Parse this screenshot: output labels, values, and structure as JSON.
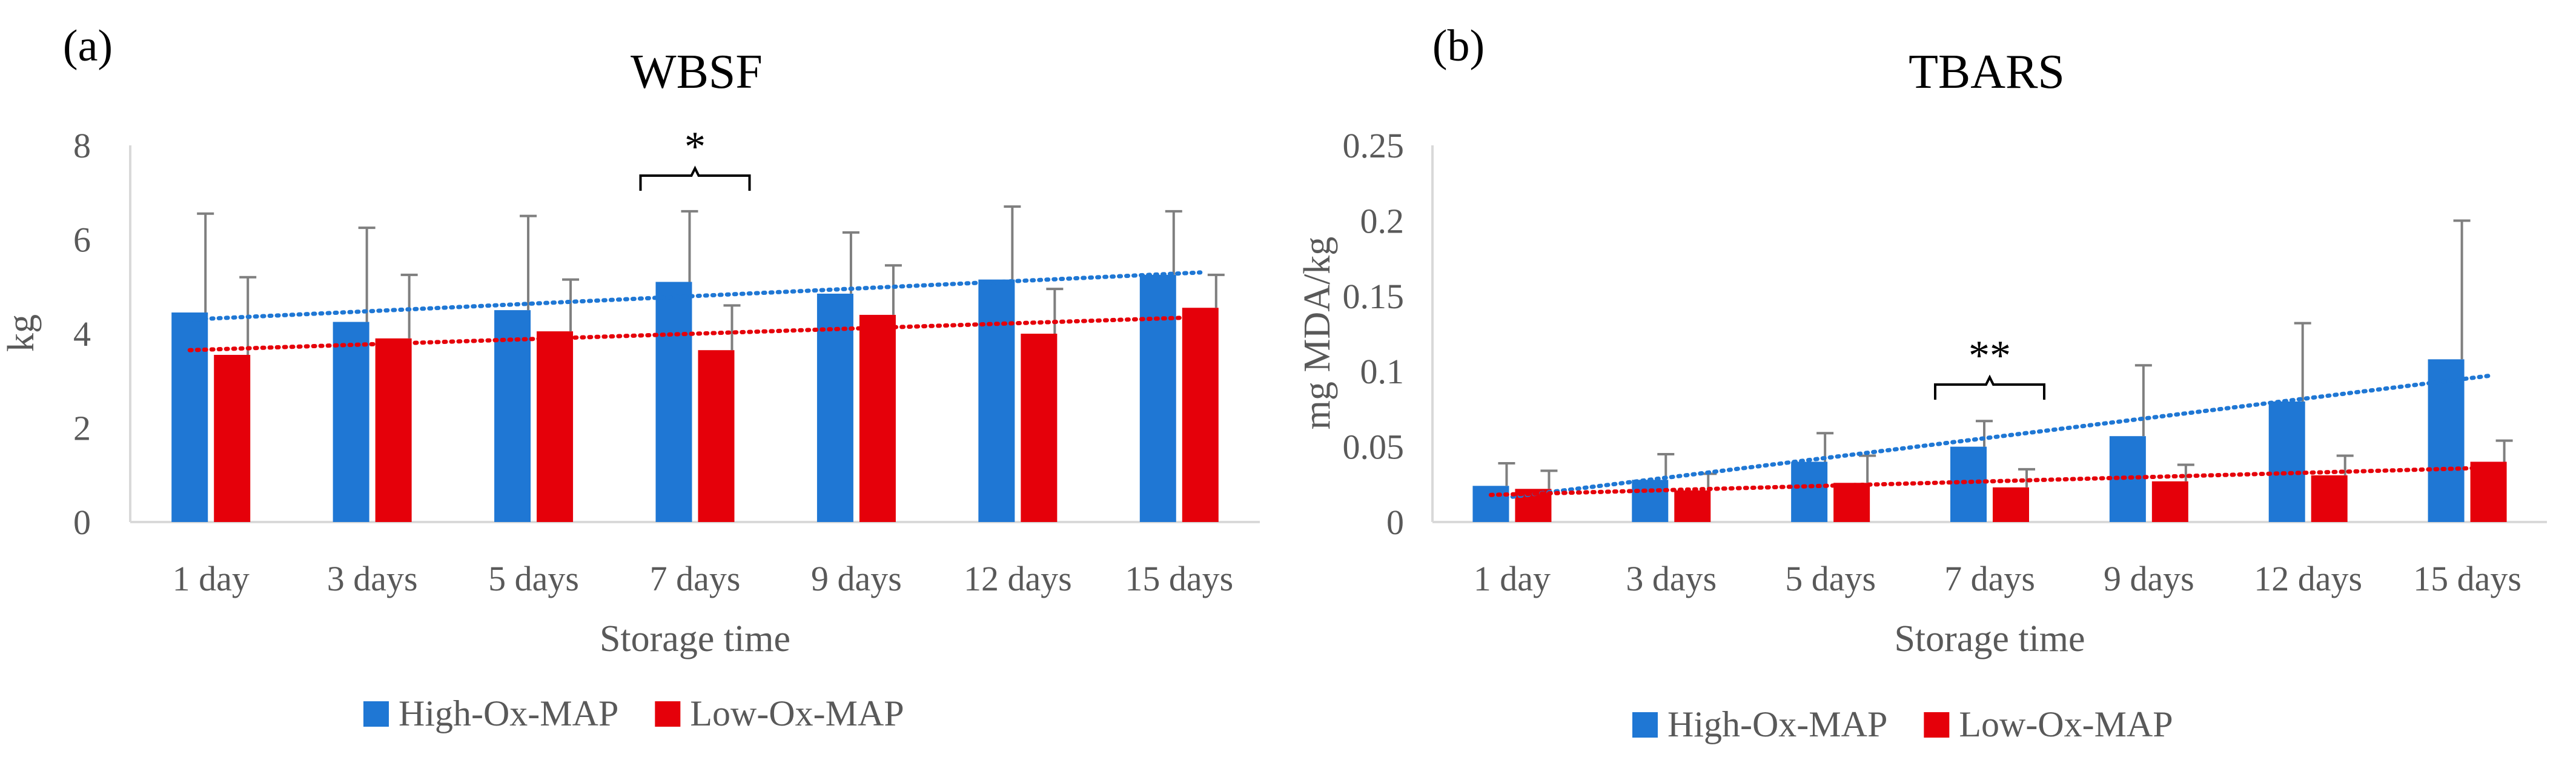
{
  "legend": {
    "series": [
      {
        "name": "High-Ox-MAP",
        "color": "#1f77d4"
      },
      {
        "name": "Low-Ox-MAP",
        "color": "#e5000a"
      }
    ]
  },
  "chart_data": [
    {
      "type": "bar",
      "panel_label": "(a)",
      "title": "WBSF",
      "xlabel": "Storage time",
      "ylabel": "kg",
      "ylim": [
        0,
        8
      ],
      "yticks": [
        "0",
        "2",
        "4",
        "6",
        "8"
      ],
      "ytick_values": [
        0,
        2,
        4,
        6,
        8
      ],
      "grid": false,
      "categories": [
        "1 day",
        "3 days",
        "5 days",
        "7 days",
        "9 days",
        "12 days",
        "15 days"
      ],
      "series": [
        {
          "name": "High-Ox-MAP",
          "values": [
            4.45,
            4.25,
            4.5,
            5.1,
            4.85,
            5.15,
            5.25
          ],
          "errors": [
            2.1,
            2.0,
            2.0,
            1.5,
            1.3,
            1.55,
            1.35
          ],
          "trend": [
            4.3,
            5.3
          ]
        },
        {
          "name": "Low-Ox-MAP",
          "values": [
            3.55,
            3.9,
            4.05,
            3.65,
            4.4,
            4.0,
            4.55
          ],
          "errors": [
            1.65,
            1.35,
            1.1,
            0.95,
            1.05,
            0.95,
            0.7
          ],
          "trend": [
            3.65,
            4.35
          ]
        }
      ],
      "annotations": [
        {
          "text": "*",
          "category_index": 3,
          "y": 7.5
        }
      ]
    },
    {
      "type": "bar",
      "panel_label": "(b)",
      "title": "TBARS",
      "xlabel": "Storage time",
      "ylabel": "mg MDA/kg",
      "ylim": [
        0,
        0.25
      ],
      "yticks": [
        "0",
        "0.05",
        "0.1",
        "0.15",
        "0.2",
        "0.25"
      ],
      "ytick_values": [
        0,
        0.05,
        0.1,
        0.15,
        0.2,
        0.25
      ],
      "grid": false,
      "categories": [
        "1 day",
        "3 days",
        "5 days",
        "7 days",
        "9 days",
        "12 days",
        "15 days"
      ],
      "series": [
        {
          "name": "High-Ox-MAP",
          "values": [
            0.024,
            0.028,
            0.04,
            0.05,
            0.057,
            0.08,
            0.108
          ],
          "errors": [
            0.015,
            0.017,
            0.019,
            0.017,
            0.047,
            0.052,
            0.092
          ],
          "trend": [
            0.015,
            0.097
          ]
        },
        {
          "name": "Low-Ox-MAP",
          "values": [
            0.022,
            0.021,
            0.026,
            0.023,
            0.027,
            0.031,
            0.04
          ],
          "errors": [
            0.012,
            0.011,
            0.018,
            0.012,
            0.011,
            0.013,
            0.014
          ],
          "trend": [
            0.018,
            0.036
          ]
        }
      ],
      "annotations": [
        {
          "text": "**",
          "category_index": 3,
          "y": 0.12
        }
      ]
    }
  ]
}
